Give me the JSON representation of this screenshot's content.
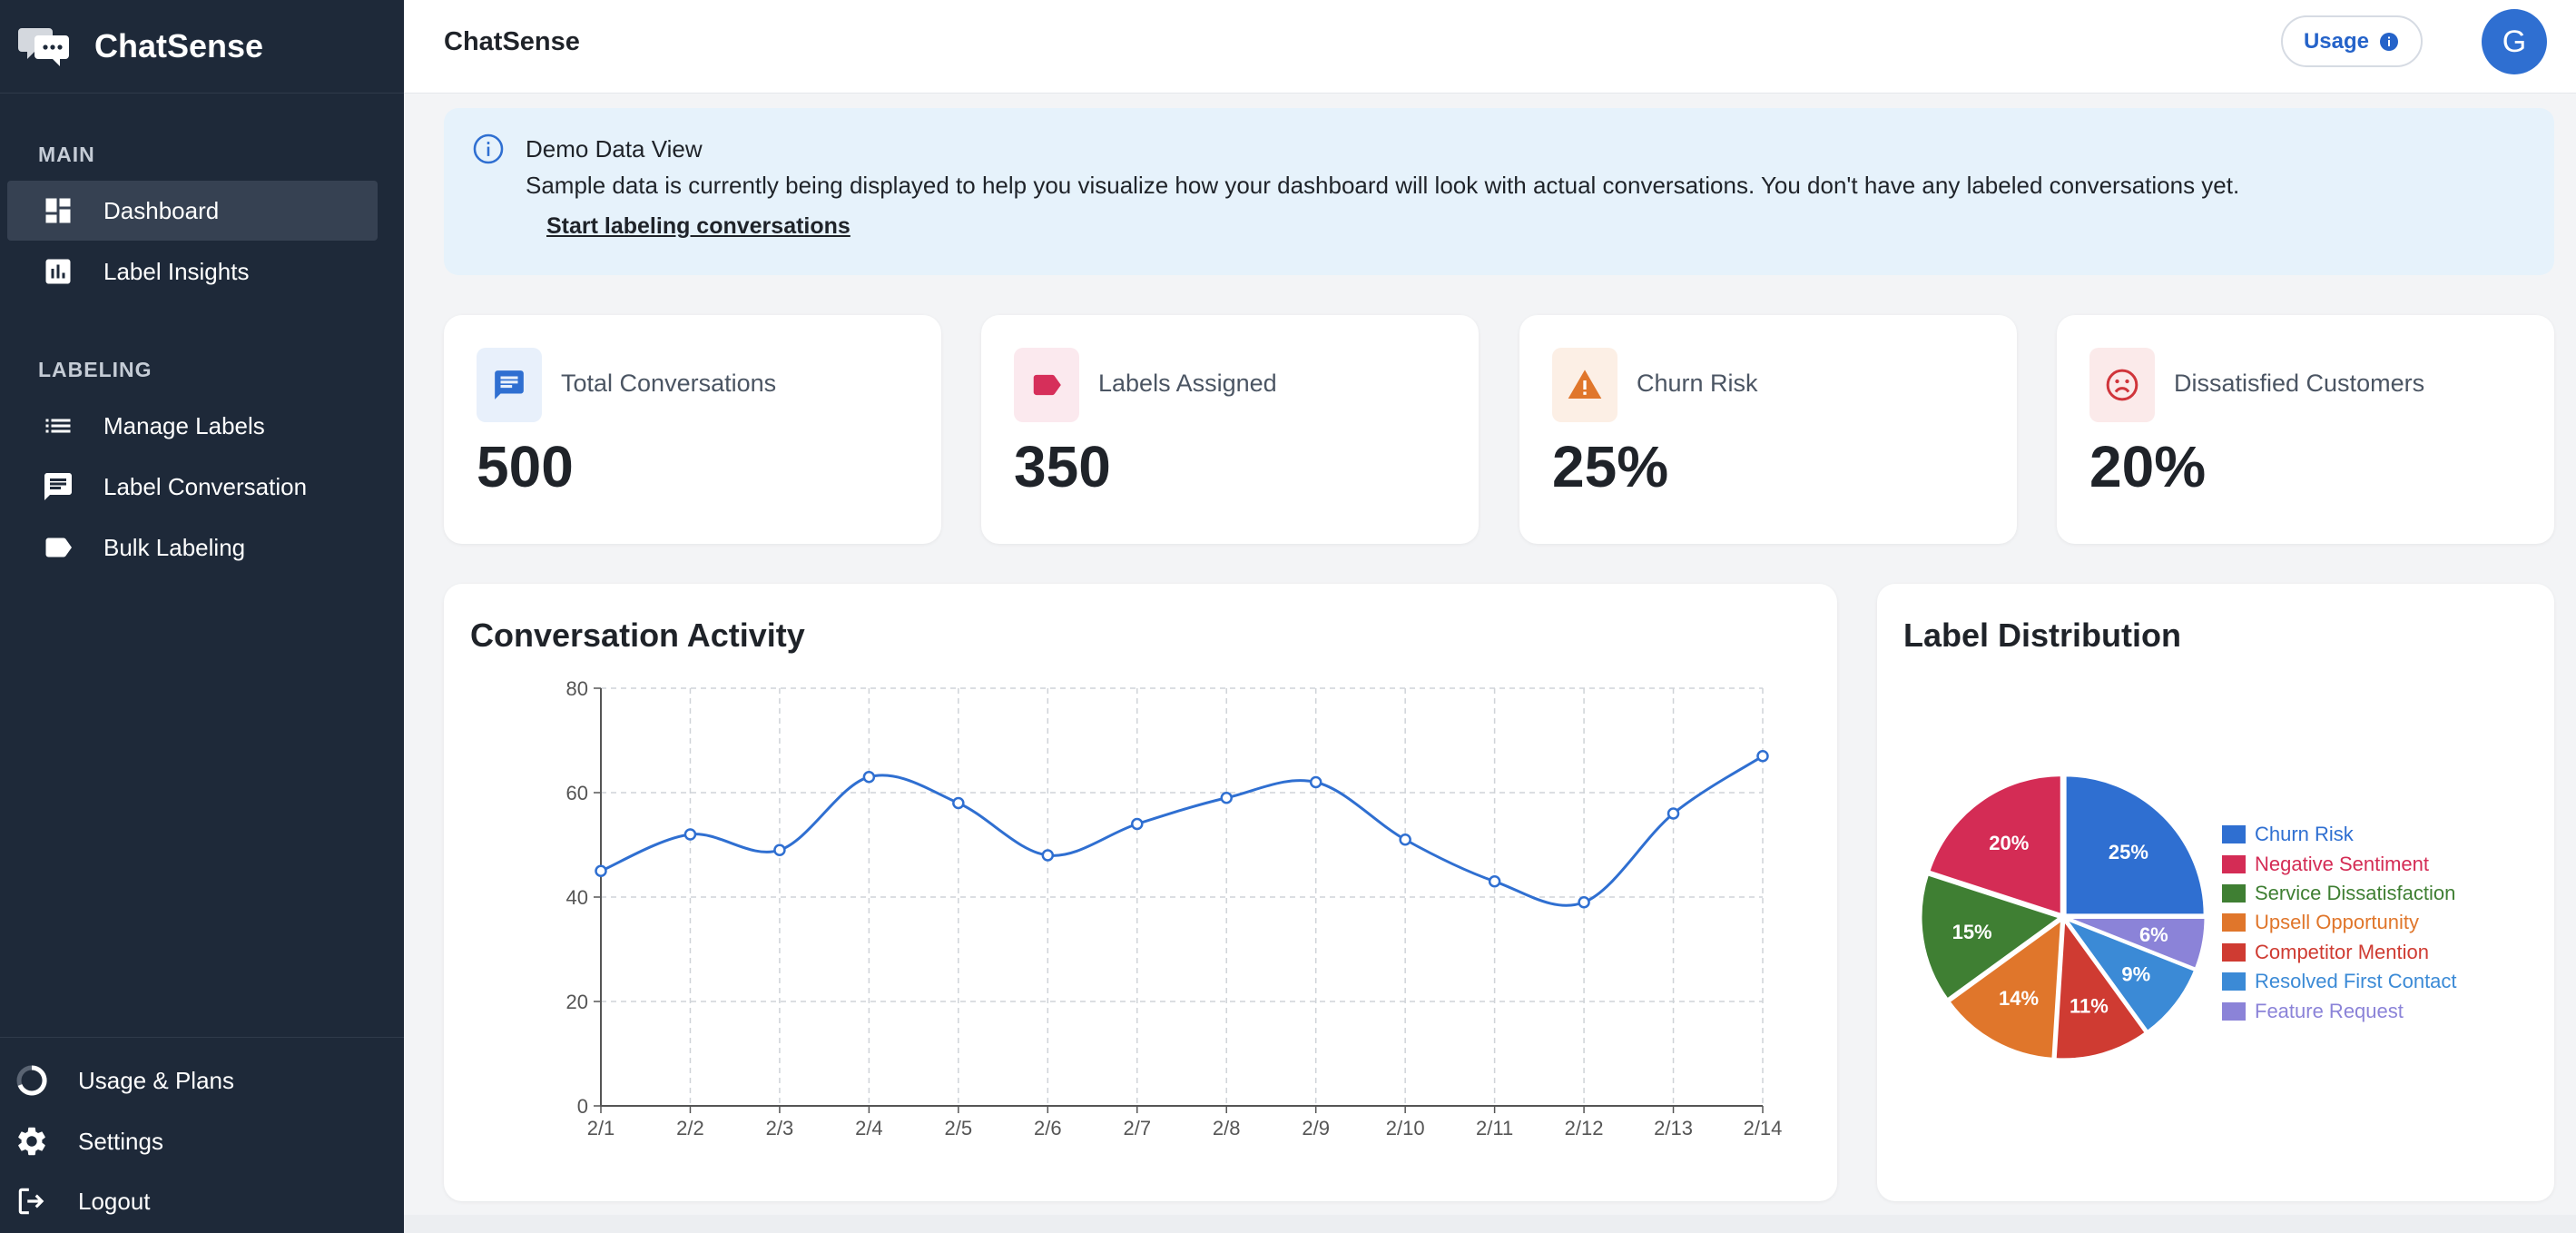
{
  "app": {
    "name": "ChatSense"
  },
  "header": {
    "title": "ChatSense",
    "usage_label": "Usage",
    "avatar_initial": "G"
  },
  "sidebar": {
    "sections": [
      {
        "title": "MAIN",
        "items": [
          {
            "label": "Dashboard",
            "icon": "dashboard-icon",
            "active": true
          },
          {
            "label": "Label Insights",
            "icon": "insights-icon",
            "active": false
          }
        ]
      },
      {
        "title": "LABELING",
        "items": [
          {
            "label": "Manage Labels",
            "icon": "list-icon",
            "active": false
          },
          {
            "label": "Label Conversation",
            "icon": "chat-icon",
            "active": false
          },
          {
            "label": "Bulk Labeling",
            "icon": "label-icon",
            "active": false
          }
        ]
      }
    ],
    "footer": [
      {
        "label": "Usage & Plans",
        "icon": "usage-ring-icon"
      },
      {
        "label": "Settings",
        "icon": "gear-icon"
      },
      {
        "label": "Logout",
        "icon": "logout-icon"
      }
    ]
  },
  "banner": {
    "title": "Demo Data View",
    "text": "Sample data is currently being displayed to help you visualize how your dashboard will look with actual conversations. You don't have any labeled conversations yet.",
    "link": "Start labeling conversations"
  },
  "stats": [
    {
      "label": "Total Conversations",
      "value": "500",
      "icon": "message-icon",
      "color": "#2f6fd1",
      "bg": "#e8f0fb"
    },
    {
      "label": "Labels Assigned",
      "value": "350",
      "icon": "tag-icon",
      "color": "#d62f5a",
      "bg": "#fbe9ee"
    },
    {
      "label": "Churn Risk",
      "value": "25%",
      "icon": "warning-icon",
      "color": "#e0762b",
      "bg": "#fcefe5"
    },
    {
      "label": "Dissatisfied Customers",
      "value": "20%",
      "icon": "sad-face-icon",
      "color": "#d0353b",
      "bg": "#fbeaea"
    }
  ],
  "activity": {
    "title": "Conversation Activity"
  },
  "distribution": {
    "title": "Label Distribution"
  },
  "chart_data": [
    {
      "type": "line",
      "title": "Conversation Activity",
      "x": [
        "2/1",
        "2/2",
        "2/3",
        "2/4",
        "2/5",
        "2/6",
        "2/7",
        "2/8",
        "2/9",
        "2/10",
        "2/11",
        "2/12",
        "2/13",
        "2/14"
      ],
      "series": [
        {
          "values": [
            45,
            52,
            49,
            63,
            58,
            48,
            54,
            59,
            62,
            51,
            43,
            39,
            56,
            67
          ],
          "color": "#2f6fd1"
        }
      ],
      "ylim": [
        0,
        80
      ],
      "yticks": [
        0,
        20,
        40,
        60,
        80
      ],
      "grid": true
    },
    {
      "type": "pie",
      "title": "Label Distribution",
      "legend": "right",
      "slices": [
        {
          "label": "Churn Risk",
          "value": 25,
          "text": "25%",
          "color": "#2f6fd1"
        },
        {
          "label": "Feature Request",
          "value": 6,
          "text": "6%",
          "color": "#8b83d8"
        },
        {
          "label": "Resolved First Contact",
          "value": 9,
          "text": "9%",
          "color": "#3b8ad6"
        },
        {
          "label": "Competitor Mention",
          "value": 11,
          "text": "11%",
          "color": "#cf3b32"
        },
        {
          "label": "Upsell Opportunity",
          "value": 14,
          "text": "14%",
          "color": "#e0762b"
        },
        {
          "label": "Service Dissatisfaction",
          "value": 15,
          "text": "15%",
          "color": "#3f7f33"
        },
        {
          "label": "Negative Sentiment",
          "value": 20,
          "text": "20%",
          "color": "#d42c55"
        }
      ],
      "legend_order": [
        "Churn Risk",
        "Negative Sentiment",
        "Service Dissatisfaction",
        "Upsell Opportunity",
        "Competitor Mention",
        "Resolved First Contact",
        "Feature Request"
      ]
    }
  ]
}
